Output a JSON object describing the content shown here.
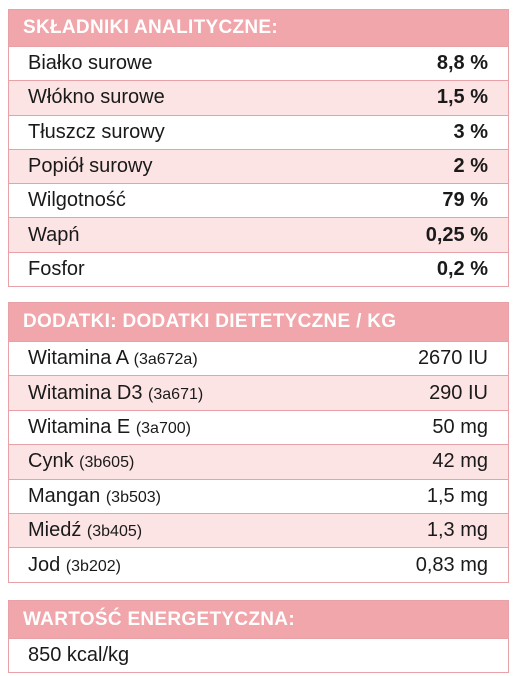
{
  "analytical": {
    "title": "SKŁADNIKI ANALITYCZNE:",
    "rows": [
      {
        "name": "Białko surowe",
        "value": "8,8 %"
      },
      {
        "name": "Włókno surowe",
        "value": "1,5 %"
      },
      {
        "name": "Tłuszcz surowy",
        "value": "3 %"
      },
      {
        "name": "Popiół surowy",
        "value": "2 %"
      },
      {
        "name": "Wilgotność",
        "value": "79 %"
      },
      {
        "name": "Wapń",
        "value": "0,25 %"
      },
      {
        "name": "Fosfor",
        "value": "0,2 %"
      }
    ]
  },
  "additives": {
    "title": "DODATKI: DODATKI DIETETYCZNE / KG",
    "rows": [
      {
        "name": "Witamina A",
        "code": "(3a672a)",
        "value": "2670 IU"
      },
      {
        "name": "Witamina D3",
        "code": "(3a671)",
        "value": "290 IU"
      },
      {
        "name": "Witamina E",
        "code": "(3a700)",
        "value": "50 mg"
      },
      {
        "name": "Cynk",
        "code": "(3b605)",
        "value": "42 mg"
      },
      {
        "name": "Mangan",
        "code": "(3b503)",
        "value": "1,5 mg"
      },
      {
        "name": "Miedź",
        "code": "(3b405)",
        "value": "1,3 mg"
      },
      {
        "name": "Jod",
        "code": "(3b202)",
        "value": "0,83 mg"
      }
    ]
  },
  "energy": {
    "title": "WARTOŚĆ ENERGETYCZNA:",
    "value": "850 kcal/kg"
  },
  "colors": {
    "header_bg": "#f0a6aa",
    "alt_row_bg": "#fde4e4",
    "border": "#e8a1a6"
  }
}
